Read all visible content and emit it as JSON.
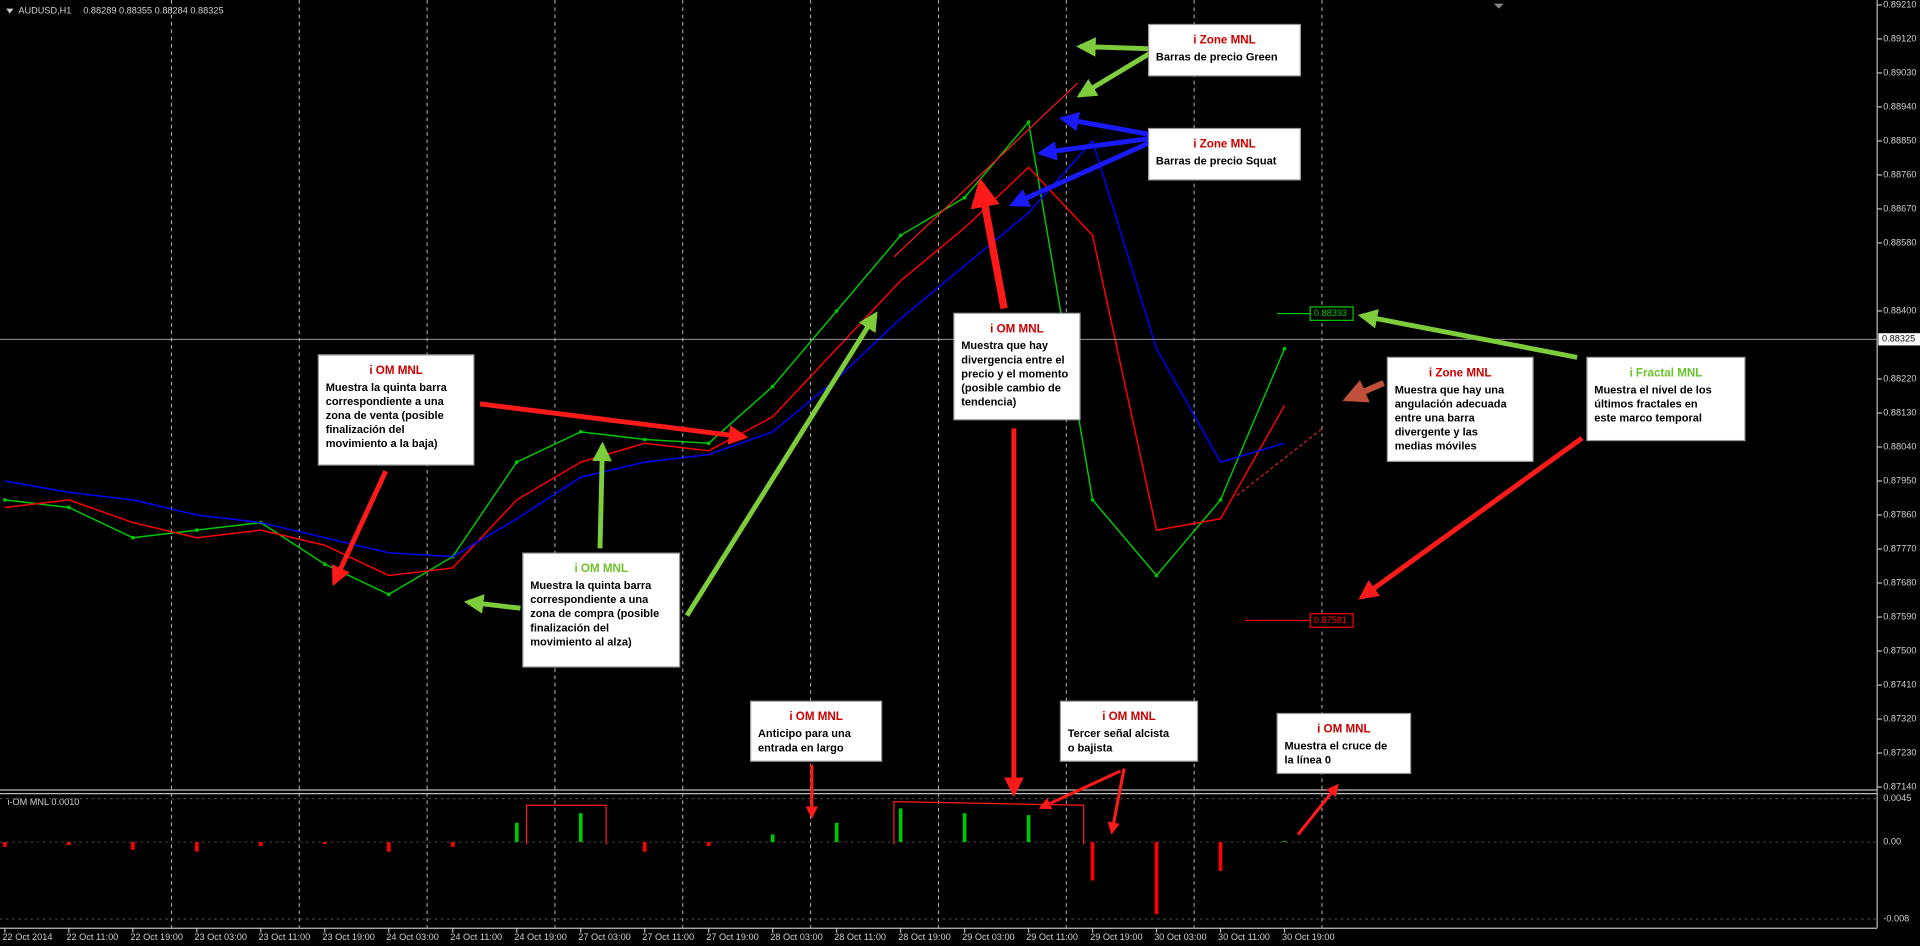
{
  "header": {
    "symbol": "AUDUSD,H1",
    "quote": "0.88289 0.88355 0.88284 0.88325"
  },
  "chart_data": [
    {
      "type": "line",
      "categories": [
        "22 Oct 2014",
        "22 Oct 11:00",
        "22 Oct 19:00",
        "23 Oct 03:00",
        "23 Oct 11:00",
        "23 Oct 19:00",
        "24 Oct 03:00",
        "24 Oct 11:00",
        "24 Oct 19:00",
        "27 Oct 03:00",
        "27 Oct 11:00",
        "27 Oct 19:00",
        "28 Oct 03:00",
        "28 Oct 11:00",
        "28 Oct 19:00",
        "29 Oct 03:00",
        "29 Oct 11:00",
        "29 Oct 19:00",
        "30 Oct 03:00",
        "30 Oct 11:00",
        "30 Oct 19:00"
      ],
      "series": [
        {
          "color": "#00c800",
          "values": [
            0.879,
            0.8788,
            0.878,
            0.8782,
            0.8784,
            0.8773,
            0.8765,
            0.8775,
            0.88,
            0.8808,
            0.8806,
            0.8805,
            0.882,
            0.884,
            0.886,
            0.887,
            0.889,
            0.879,
            0.877,
            0.879,
            0.883
          ]
        },
        {
          "color": "#ff0000",
          "values": [
            0.8788,
            0.879,
            0.8784,
            0.878,
            0.8782,
            0.8778,
            0.877,
            0.8772,
            0.879,
            0.88,
            0.8805,
            0.8803,
            0.8812,
            0.883,
            0.8848,
            0.8862,
            0.8878,
            0.886,
            0.8782,
            0.8785,
            0.8815
          ]
        },
        {
          "color": "#0000ff",
          "values": [
            0.8795,
            0.8792,
            0.879,
            0.8786,
            0.8784,
            0.878,
            0.8776,
            0.8775,
            0.8785,
            0.8796,
            0.88,
            0.8802,
            0.8808,
            0.8822,
            0.8838,
            0.8852,
            0.8866,
            0.8885,
            0.883,
            0.88,
            0.8805
          ]
        }
      ],
      "ylim": [
        0.87134,
        0.89223
      ],
      "yticks": [
        {
          "value": 0.8921,
          "label": "0.89210"
        },
        {
          "value": 0.8912,
          "label": "0.89120"
        },
        {
          "value": 0.8903,
          "label": "0.89030"
        },
        {
          "value": 0.8894,
          "label": "0.88940"
        },
        {
          "value": 0.8885,
          "label": "0.88850"
        },
        {
          "value": 0.8876,
          "label": "0.88760"
        },
        {
          "value": 0.8867,
          "label": "0.88670"
        },
        {
          "value": 0.8858,
          "label": "0.88580"
        },
        {
          "value": 0.884,
          "label": "0.88400"
        },
        {
          "value": 0.8822,
          "label": "0.88220"
        },
        {
          "value": 0.8813,
          "label": "0.88130"
        },
        {
          "value": 0.8804,
          "label": "0.88040"
        },
        {
          "value": 0.8795,
          "label": "0.87950"
        },
        {
          "value": 0.8786,
          "label": "0.87860"
        },
        {
          "value": 0.8777,
          "label": "0.87770"
        },
        {
          "value": 0.8768,
          "label": "0.87680"
        },
        {
          "value": 0.8759,
          "label": "0.87590"
        },
        {
          "value": 0.875,
          "label": "0.87500"
        },
        {
          "value": 0.8741,
          "label": "0.87410"
        },
        {
          "value": 0.8732,
          "label": "0.87320"
        },
        {
          "value": 0.8723,
          "label": "0.87230"
        },
        {
          "value": 0.8714,
          "label": "0.87140"
        }
      ],
      "current_price": {
        "value": 0.88325,
        "label": "0.88325"
      },
      "fractals": [
        {
          "value": 0.88393,
          "label": "0.88393",
          "color": "#00c800"
        },
        {
          "value": 0.87581,
          "label": "0.87581",
          "color": "#ff0000"
        }
      ],
      "grid": true
    },
    {
      "type": "bar",
      "title": "i-OM MNL 0.0010",
      "values": [
        -0.0005,
        -0.0003,
        -0.0008,
        -0.001,
        -0.0004,
        -0.0002,
        -0.001,
        -0.0005,
        0.002,
        0.003,
        -0.001,
        -0.0004,
        0.0008,
        0.002,
        0.0035,
        0.003,
        0.0028,
        -0.004,
        -0.0075,
        -0.003,
        0.0001
      ],
      "ylim": [
        -0.0089,
        0.0051
      ],
      "yticks": [
        {
          "value": 0.0045,
          "label": "0.0045"
        },
        {
          "value": 0,
          "label": "0.00"
        },
        {
          "value": -0.008,
          "label": "-0.008"
        }
      ],
      "colors": {
        "positive": "#00c800",
        "negative": "#ff0000"
      }
    }
  ],
  "annotations": [
    {
      "title": "i Zone MNL",
      "title_color": "#cc0000",
      "lines": [
        "Barras de precio Green"
      ]
    },
    {
      "title": "i Zone MNL",
      "title_color": "#cc0000",
      "lines": [
        "Barras de precio Squat"
      ]
    },
    {
      "title": "i OM MNL",
      "title_color": "#cc0000",
      "lines": [
        "Muestra la quinta barra",
        "correspondiente a una",
        "zona de venta (posible",
        "finalización del",
        "movimiento a la baja)"
      ]
    },
    {
      "title": "i OM MNL",
      "title_color": "#6cc22c",
      "lines": [
        "Muestra la quinta barra",
        "correspondiente a una",
        "zona de compra (posible",
        "finalización del",
        "movimiento al alza)"
      ]
    },
    {
      "title": "i OM MNL",
      "title_color": "#cc0000",
      "lines": [
        "Muestra que hay",
        "divergencia entre el",
        "precio y el momento",
        "(posible cambio de",
        "tendencia)"
      ]
    },
    {
      "title": "i Zone MNL",
      "title_color": "#cc0000",
      "lines": [
        "Muestra que hay una",
        "angulación adecuada",
        "entre una barra",
        "divergente  y las",
        "medias móviles"
      ]
    },
    {
      "title": "i Fractal MNL",
      "title_color": "#6cc22c",
      "lines": [
        "Muestra el nivel de los",
        "últimos fractales en",
        "este marco temporal"
      ]
    },
    {
      "title": "i OM MNL",
      "title_color": "#cc0000",
      "lines": [
        "Anticipo para una",
        "entrada en largo"
      ]
    },
    {
      "title": "i OM MNL",
      "title_color": "#cc0000",
      "lines": [
        "Tercer señal alcista",
        "o bajista"
      ]
    },
    {
      "title": "i OM MNL",
      "title_color": "#cc0000",
      "lines": [
        "Muestra el cruce de",
        "la línea 0"
      ]
    }
  ]
}
